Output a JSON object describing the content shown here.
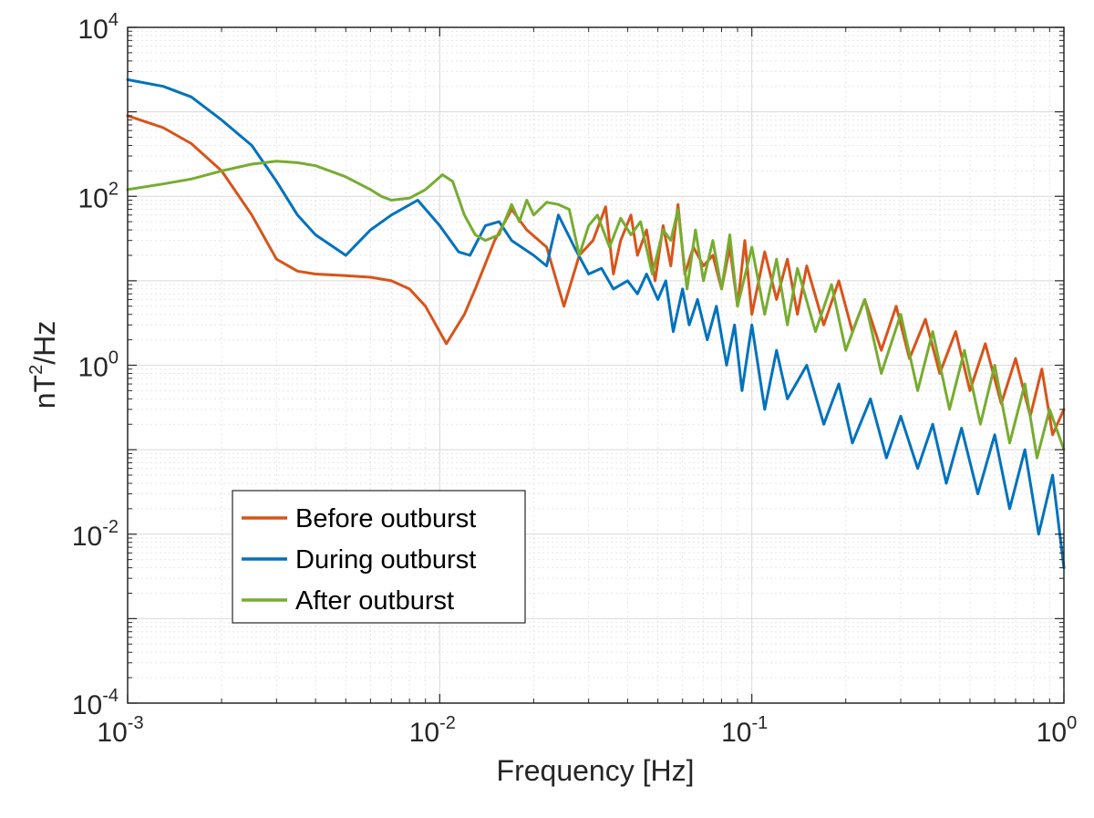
{
  "chart_data": {
    "type": "line",
    "title": "",
    "xlabel": "Frequency [Hz]",
    "ylabel": "nT²/Hz",
    "ylabel_parts": {
      "base": "nT",
      "exp": "2",
      "rest": "/Hz"
    },
    "xscale": "log",
    "yscale": "log",
    "xlim": [
      0.001,
      1
    ],
    "ylim": [
      0.0001,
      10000
    ],
    "grid": true,
    "minor_grid": true,
    "legend_position": "bottom-left",
    "x_tick_labels": [
      {
        "base": "10",
        "exp": "-3",
        "value": 0.001
      },
      {
        "base": "10",
        "exp": "-2",
        "value": 0.01
      },
      {
        "base": "10",
        "exp": "-1",
        "value": 0.1
      },
      {
        "base": "10",
        "exp": "0",
        "value": 1
      }
    ],
    "y_tick_labels": [
      {
        "base": "10",
        "exp": "-4",
        "value": 0.0001
      },
      {
        "base": "10",
        "exp": "-2",
        "value": 0.01
      },
      {
        "base": "10",
        "exp": "0",
        "value": 1
      },
      {
        "base": "10",
        "exp": "2",
        "value": 100
      },
      {
        "base": "10",
        "exp": "4",
        "value": 10000
      }
    ],
    "series": [
      {
        "name": "Before outburst",
        "color": "#D95319",
        "x": [
          0.001,
          0.0013,
          0.0016,
          0.002,
          0.0025,
          0.003,
          0.0035,
          0.004,
          0.005,
          0.006,
          0.007,
          0.008,
          0.009,
          0.0105,
          0.012,
          0.013,
          0.015,
          0.017,
          0.019,
          0.022,
          0.025,
          0.028,
          0.031,
          0.034,
          0.036,
          0.038,
          0.041,
          0.043,
          0.046,
          0.049,
          0.052,
          0.055,
          0.058,
          0.061,
          0.065,
          0.07,
          0.075,
          0.08,
          0.085,
          0.09,
          0.095,
          0.1,
          0.11,
          0.12,
          0.13,
          0.14,
          0.15,
          0.17,
          0.19,
          0.21,
          0.23,
          0.26,
          0.29,
          0.32,
          0.36,
          0.4,
          0.45,
          0.5,
          0.56,
          0.63,
          0.7,
          0.78,
          0.85,
          0.92,
          1.0
        ],
        "y": [
          900,
          650,
          420,
          200,
          60,
          18,
          13,
          12,
          11.5,
          11,
          10,
          8,
          5,
          1.8,
          4,
          8,
          30,
          70,
          40,
          25,
          5,
          20,
          30,
          75,
          12,
          30,
          60,
          20,
          40,
          10,
          45,
          15,
          80,
          12,
          25,
          15,
          20,
          8,
          25,
          5,
          30,
          4,
          22,
          6,
          18,
          4,
          15,
          3,
          10,
          2.5,
          6,
          1.5,
          5,
          1.2,
          3.5,
          0.8,
          2.5,
          0.5,
          1.8,
          0.35,
          1.2,
          0.25,
          0.9,
          0.15,
          0.3
        ]
      },
      {
        "name": "During outburst",
        "color": "#0072BD",
        "x": [
          0.001,
          0.0013,
          0.0016,
          0.002,
          0.0025,
          0.003,
          0.0035,
          0.004,
          0.005,
          0.006,
          0.007,
          0.0085,
          0.01,
          0.0115,
          0.0125,
          0.014,
          0.0155,
          0.017,
          0.02,
          0.022,
          0.024,
          0.027,
          0.03,
          0.033,
          0.036,
          0.04,
          0.043,
          0.046,
          0.05,
          0.053,
          0.056,
          0.06,
          0.063,
          0.067,
          0.072,
          0.077,
          0.083,
          0.088,
          0.093,
          0.1,
          0.11,
          0.12,
          0.13,
          0.15,
          0.17,
          0.19,
          0.21,
          0.24,
          0.27,
          0.3,
          0.34,
          0.38,
          0.42,
          0.47,
          0.53,
          0.6,
          0.67,
          0.75,
          0.83,
          0.92,
          1.0
        ],
        "y": [
          2400,
          2000,
          1500,
          800,
          400,
          150,
          60,
          35,
          20,
          40,
          60,
          90,
          45,
          22,
          20,
          45,
          50,
          30,
          20,
          15,
          60,
          25,
          12,
          14,
          8,
          10,
          7,
          12,
          6,
          10,
          2.5,
          8,
          3,
          6,
          2,
          5,
          1,
          3,
          0.5,
          3,
          0.3,
          1.5,
          0.4,
          1,
          0.2,
          0.6,
          0.12,
          0.4,
          0.08,
          0.25,
          0.06,
          0.2,
          0.04,
          0.18,
          0.03,
          0.15,
          0.02,
          0.1,
          0.01,
          0.05,
          0.004
        ]
      },
      {
        "name": "After outburst",
        "color": "#77AC30",
        "x": [
          0.001,
          0.0013,
          0.0016,
          0.002,
          0.0025,
          0.003,
          0.0035,
          0.004,
          0.005,
          0.006,
          0.0065,
          0.007,
          0.008,
          0.009,
          0.0102,
          0.011,
          0.012,
          0.013,
          0.014,
          0.0155,
          0.017,
          0.018,
          0.019,
          0.02,
          0.022,
          0.024,
          0.026,
          0.028,
          0.03,
          0.032,
          0.035,
          0.038,
          0.041,
          0.044,
          0.048,
          0.052,
          0.055,
          0.058,
          0.062,
          0.066,
          0.07,
          0.075,
          0.08,
          0.085,
          0.09,
          0.1,
          0.11,
          0.12,
          0.13,
          0.14,
          0.16,
          0.18,
          0.2,
          0.23,
          0.26,
          0.3,
          0.34,
          0.38,
          0.43,
          0.48,
          0.54,
          0.6,
          0.67,
          0.75,
          0.82,
          0.9,
          1.0
        ],
        "y": [
          120,
          140,
          160,
          200,
          240,
          260,
          250,
          230,
          170,
          120,
          100,
          90,
          95,
          120,
          180,
          150,
          60,
          35,
          30,
          35,
          80,
          50,
          90,
          60,
          85,
          80,
          70,
          20,
          45,
          60,
          25,
          55,
          35,
          50,
          12,
          40,
          30,
          70,
          8,
          40,
          10,
          30,
          8,
          35,
          5,
          25,
          4,
          18,
          3,
          14,
          2.5,
          9,
          1.5,
          6,
          0.8,
          4,
          0.5,
          2.5,
          0.3,
          1.5,
          0.2,
          1,
          0.12,
          0.6,
          0.08,
          0.3,
          0.1
        ]
      }
    ]
  }
}
